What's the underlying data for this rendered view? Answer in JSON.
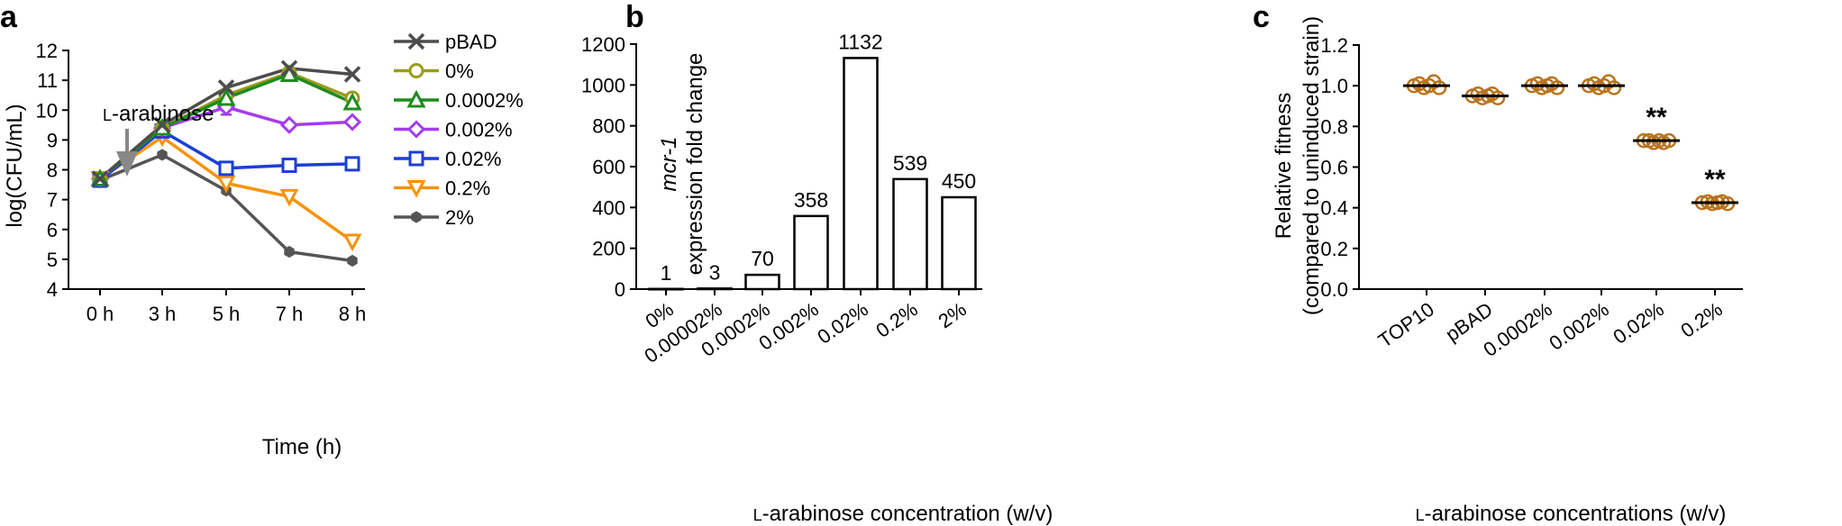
{
  "panels": {
    "a": "a",
    "b": "b",
    "c": "c"
  },
  "chart_data": [
    {
      "type": "line",
      "title": "",
      "xlabel": "Time (h)",
      "ylabel": "log(CFU/mL)",
      "categories": [
        "0 h",
        "3 h",
        "5 h",
        "7 h",
        "8 h"
      ],
      "ylim": [
        4,
        12
      ],
      "yticks": [
        4,
        5,
        6,
        7,
        8,
        9,
        10,
        11,
        12
      ],
      "annotation": "L-arabinose",
      "annotation_smallcap": "L",
      "annotation_rest": "-arabinose",
      "legend_position": "right",
      "series": [
        {
          "name": "pBAD",
          "color": "#4d4d4d",
          "marker": "x",
          "values": [
            7.7,
            9.5,
            10.75,
            11.4,
            11.2
          ]
        },
        {
          "name": "0%",
          "color": "#9b9b1d",
          "marker": "circle",
          "values": [
            7.7,
            9.4,
            10.5,
            11.25,
            10.4
          ]
        },
        {
          "name": "0.0002%",
          "color": "#1e8c1e",
          "marker": "triangle",
          "values": [
            7.7,
            9.4,
            10.4,
            11.2,
            10.25
          ]
        },
        {
          "name": "0.002%",
          "color": "#a43bf1",
          "marker": "diamond",
          "values": [
            7.7,
            9.4,
            10.1,
            9.5,
            9.6
          ]
        },
        {
          "name": "0.02%",
          "color": "#1c3fd6",
          "marker": "square",
          "values": [
            7.65,
            9.3,
            8.05,
            8.15,
            8.2
          ]
        },
        {
          "name": "0.2%",
          "color": "#f6930a",
          "marker": "triangle-down",
          "values": [
            7.7,
            9.1,
            7.55,
            7.1,
            5.6
          ]
        },
        {
          "name": "2%",
          "color": "#555555",
          "marker": "hexagon",
          "values": [
            7.65,
            8.5,
            7.3,
            5.25,
            4.95
          ]
        }
      ]
    },
    {
      "type": "bar",
      "title": "",
      "ylabel_italic": "mcr-1",
      "ylabel": "expression fold change",
      "xlabel": "L-arabinose concentration (w/v)",
      "xlabel_smallcap": "L",
      "xlabel_rest": "-arabinose concentration (w/v)",
      "categories": [
        "0%",
        "0.00002%",
        "0.0002%",
        "0.002%",
        "0.02%",
        "0.2%",
        "2%"
      ],
      "values": [
        1,
        3,
        70,
        358,
        1132,
        539,
        450
      ],
      "value_labels": [
        "1",
        "3",
        "70",
        "358",
        "1132",
        "539",
        "450"
      ],
      "ylim": [
        0,
        1200
      ],
      "yticks": [
        0,
        200,
        400,
        600,
        800,
        1000,
        1200
      ]
    },
    {
      "type": "scatter",
      "title": "",
      "ylabel": "Relative fitness",
      "ylabel2": "(compared to uninduced strain)",
      "xlabel": "L-arabinose concentrations (w/v)",
      "xlabel_smallcap": "L",
      "xlabel_rest": "-arabinose concentrations (w/v)",
      "categories": [
        "TOP10",
        "pBAD",
        "0.0002%",
        "0.002%",
        "0.02%",
        "0.2%"
      ],
      "means": [
        1.0,
        0.95,
        1.0,
        1.0,
        0.73,
        0.425
      ],
      "points": [
        [
          1.0,
          1.01,
          0.99,
          1.0,
          1.02,
          0.99
        ],
        [
          0.95,
          0.96,
          0.94,
          0.95,
          0.96,
          0.94
        ],
        [
          1.0,
          1.01,
          0.99,
          1.0,
          1.01,
          0.99
        ],
        [
          1.0,
          1.01,
          0.99,
          1.0,
          1.02,
          0.99
        ],
        [
          0.73,
          0.73,
          0.72,
          0.73,
          0.72,
          0.73
        ],
        [
          0.425,
          0.43,
          0.42,
          0.425,
          0.43,
          0.42
        ]
      ],
      "significance": [
        "",
        "",
        "",
        "",
        "**",
        "**"
      ],
      "ylim": [
        0,
        1.2
      ],
      "yticks": [
        "0.0",
        "0.2",
        "0.4",
        "0.6",
        "0.8",
        "1.0",
        "1.2"
      ],
      "point_color": "#b8741e"
    }
  ]
}
